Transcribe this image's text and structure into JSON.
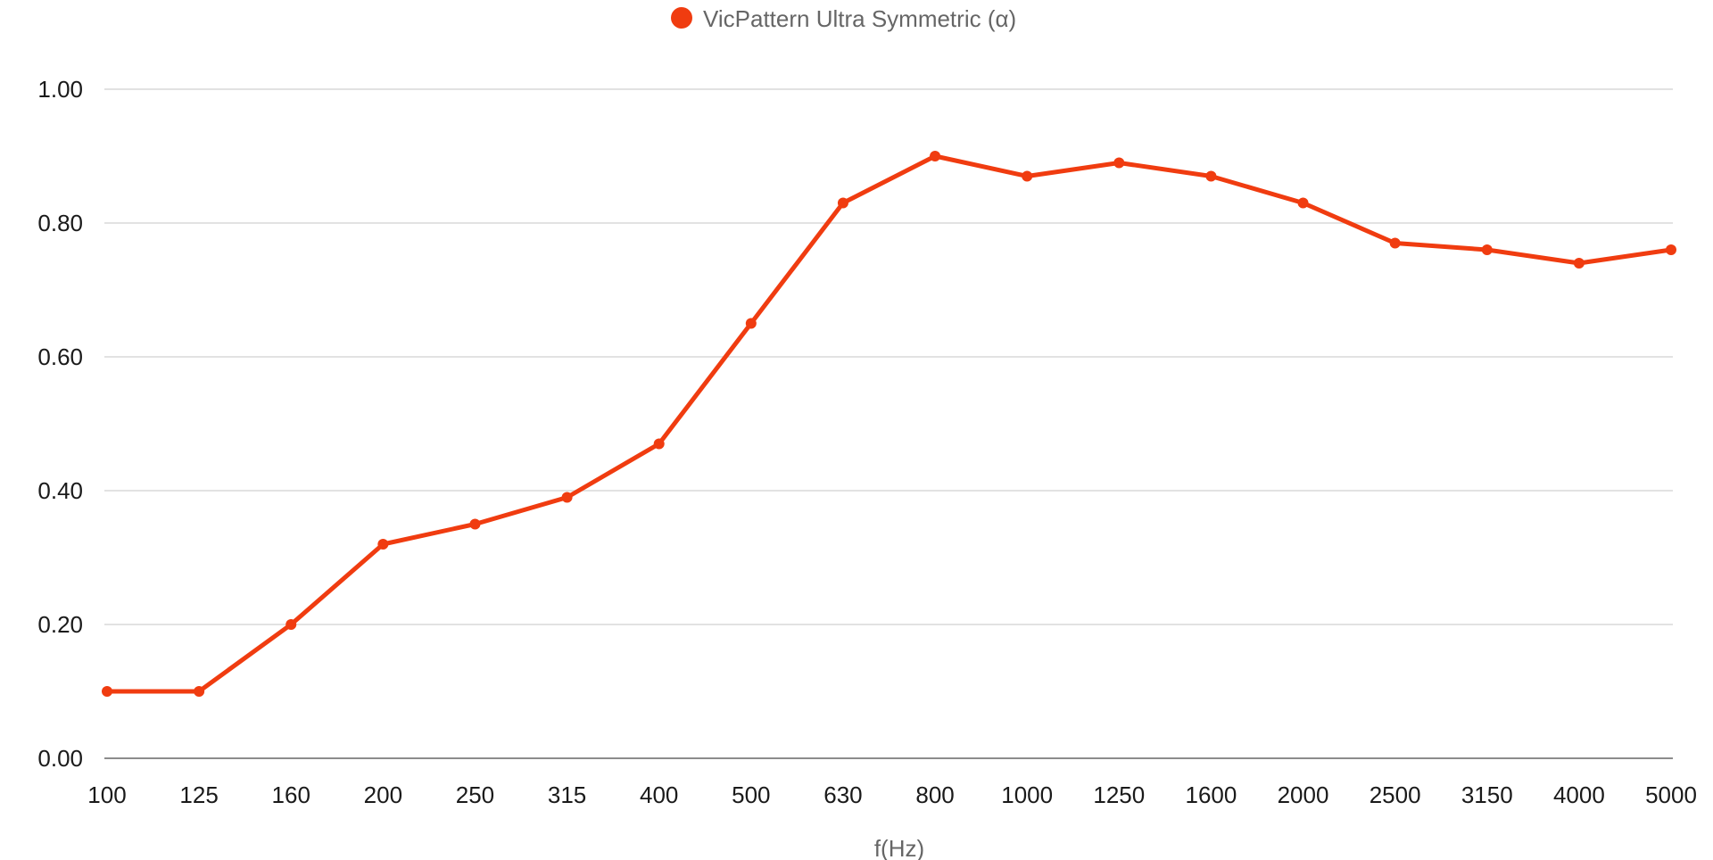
{
  "chart_data": {
    "type": "line",
    "title": "",
    "xlabel": "f(Hz)",
    "ylabel": "",
    "categories": [
      "100",
      "125",
      "160",
      "200",
      "250",
      "315",
      "400",
      "500",
      "630",
      "800",
      "1000",
      "1250",
      "1600",
      "2000",
      "2500",
      "3150",
      "4000",
      "5000"
    ],
    "series": [
      {
        "name": "VicPattern Ultra Symmetric (α)",
        "color": "#f03c10",
        "values": [
          0.1,
          0.1,
          0.2,
          0.32,
          0.35,
          0.39,
          0.47,
          0.65,
          0.83,
          0.9,
          0.87,
          0.89,
          0.87,
          0.83,
          0.77,
          0.76,
          0.74,
          0.76
        ]
      }
    ],
    "ylim": [
      0,
      1
    ],
    "yticks": [
      "0.00",
      "0.20",
      "0.40",
      "0.60",
      "0.80",
      "1.00"
    ],
    "ytick_values": [
      0,
      0.2,
      0.4,
      0.6,
      0.8,
      1.0
    ],
    "grid": true,
    "legend_position": "top-center"
  }
}
